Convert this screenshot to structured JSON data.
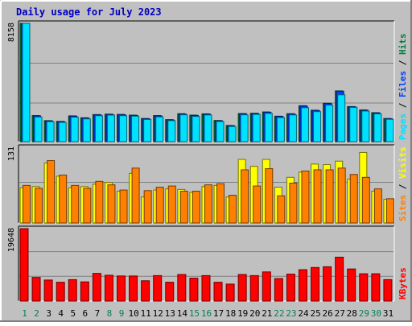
{
  "chart_data": [
    {
      "type": "bar",
      "title": "Daily usage for July 2023",
      "categories": [
        "1",
        "2",
        "3",
        "4",
        "5",
        "6",
        "7",
        "8",
        "9",
        "10",
        "11",
        "12",
        "13",
        "14",
        "15",
        "16",
        "17",
        "18",
        "19",
        "20",
        "21",
        "22",
        "23",
        "24",
        "25",
        "26",
        "27",
        "28",
        "29",
        "30",
        "31"
      ],
      "weekend_days": [
        "1",
        "2",
        "8",
        "9",
        "15",
        "16",
        "22",
        "23",
        "29",
        "30"
      ],
      "y_tick_label": "8158",
      "ylim": [
        0,
        8158
      ],
      "series": [
        {
          "name": "Hits",
          "color": "#008040",
          "values": [
            8158,
            1800,
            1450,
            1400,
            1780,
            1650,
            1870,
            1900,
            1880,
            1830,
            1600,
            1800,
            1520,
            1930,
            1830,
            1920,
            1460,
            1120,
            1940,
            1960,
            2050,
            1760,
            1930,
            2480,
            2170,
            2650,
            3500,
            2420,
            2190,
            2000,
            1600
          ]
        },
        {
          "name": "Files",
          "color": "#0040ff",
          "values": [
            8158,
            1780,
            1430,
            1380,
            1760,
            1630,
            1850,
            1880,
            1860,
            1810,
            1580,
            1780,
            1500,
            1910,
            1810,
            1900,
            1440,
            1100,
            1920,
            1940,
            2030,
            1740,
            1910,
            2460,
            2150,
            2630,
            3480,
            2400,
            2170,
            1980,
            1580
          ]
        },
        {
          "name": "Pages",
          "color": "#00e0ff",
          "values": [
            8158,
            1700,
            1380,
            1330,
            1690,
            1570,
            1790,
            1830,
            1790,
            1760,
            1530,
            1710,
            1450,
            1850,
            1740,
            1840,
            1390,
            1050,
            1850,
            1880,
            1950,
            1660,
            1840,
            2340,
            2070,
            2520,
            3230,
            2360,
            2110,
            1920,
            1540
          ]
        }
      ],
      "series_labels_order": [
        "Pages",
        "/",
        "Files",
        "/",
        "Hits"
      ],
      "separator_color": "#000000",
      "grid": true
    },
    {
      "type": "bar",
      "categories": [
        "1",
        "2",
        "3",
        "4",
        "5",
        "6",
        "7",
        "8",
        "9",
        "10",
        "11",
        "12",
        "13",
        "14",
        "15",
        "16",
        "17",
        "18",
        "19",
        "20",
        "21",
        "22",
        "23",
        "24",
        "25",
        "26",
        "27",
        "28",
        "29",
        "30",
        "31"
      ],
      "y_tick_label": "131",
      "ylim": [
        0,
        131
      ],
      "series": [
        {
          "name": "Visits",
          "color": "#ffff00",
          "values": [
            61,
            63,
            104,
            81,
            61,
            63,
            67,
            70,
            55,
            86,
            45,
            57,
            59,
            58,
            53,
            63,
            65,
            45,
            110,
            98,
            110,
            62,
            79,
            88,
            102,
            101,
            107,
            76,
            122,
            55,
            41
          ]
        },
        {
          "name": "Sites",
          "color": "#ff8000",
          "values": [
            65,
            60,
            108,
            83,
            65,
            60,
            72,
            66,
            57,
            95,
            56,
            62,
            64,
            55,
            55,
            66,
            68,
            48,
            92,
            64,
            94,
            47,
            69,
            90,
            92,
            92,
            95,
            84,
            79,
            59,
            42
          ]
        }
      ],
      "series_labels_order": [
        "Sites",
        "/",
        "Visits"
      ],
      "separator_color": "#000000",
      "grid": true
    },
    {
      "type": "bar",
      "categories": [
        "1",
        "2",
        "3",
        "4",
        "5",
        "6",
        "7",
        "8",
        "9",
        "10",
        "11",
        "12",
        "13",
        "14",
        "15",
        "16",
        "17",
        "18",
        "19",
        "20",
        "21",
        "22",
        "23",
        "24",
        "25",
        "26",
        "27",
        "28",
        "29",
        "30",
        "31"
      ],
      "y_tick_label": "19648",
      "ylim": [
        0,
        19648
      ],
      "series": [
        {
          "name": "KBytes",
          "color": "#ff0000",
          "values": [
            19648,
            6400,
            5700,
            5100,
            5800,
            5200,
            7500,
            7000,
            6800,
            6800,
            5500,
            6900,
            5100,
            7200,
            6200,
            6900,
            5100,
            4600,
            7200,
            6900,
            7900,
            6100,
            7300,
            8500,
            9100,
            9300,
            11900,
            8700,
            7400,
            7400,
            5800
          ]
        }
      ],
      "series_labels_order": [
        "KBytes"
      ],
      "grid": true
    }
  ]
}
